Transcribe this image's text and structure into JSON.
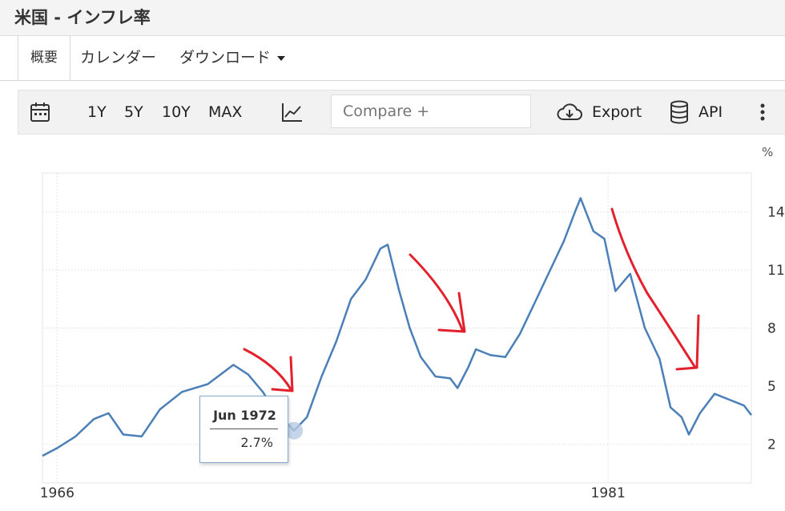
{
  "header": {
    "title": "米国 - インフレ率"
  },
  "tabs": [
    {
      "label": "概要"
    },
    {
      "label": "カレンダー"
    },
    {
      "label": "ダウンロード"
    }
  ],
  "toolbar": {
    "ranges": [
      "1Y",
      "5Y",
      "10Y",
      "MAX"
    ],
    "compare_placeholder": "Compare +",
    "export_label": "Export",
    "api_label": "API"
  },
  "tooltip": {
    "date": "Jun 1972",
    "value": "2.7%"
  },
  "colors": {
    "line": "#4a7fb8",
    "arrow": "#e3212d",
    "grid": "#e6e6e6"
  },
  "chart_data": {
    "type": "line",
    "title": "",
    "xlabel": "",
    "ylabel": "%",
    "x_ticks": [
      "1966",
      "1981"
    ],
    "y_ticks": [
      2,
      5,
      8,
      11,
      14
    ],
    "ylim": [
      0,
      16
    ],
    "grid": true,
    "series": [
      {
        "values": [
          [
            1965.6,
            1.4
          ],
          [
            1966.0,
            1.8
          ],
          [
            1966.5,
            2.4
          ],
          [
            1967.0,
            3.3
          ],
          [
            1967.4,
            3.6
          ],
          [
            1967.8,
            2.5
          ],
          [
            1968.3,
            2.4
          ],
          [
            1968.8,
            3.8
          ],
          [
            1969.4,
            4.7
          ],
          [
            1970.1,
            5.1
          ],
          [
            1970.8,
            6.1
          ],
          [
            1971.2,
            5.6
          ],
          [
            1971.6,
            4.7
          ],
          [
            1972.0,
            3.5
          ],
          [
            1972.3,
            3.0
          ],
          [
            1972.45,
            2.7
          ],
          [
            1972.8,
            3.4
          ],
          [
            1973.2,
            5.5
          ],
          [
            1973.6,
            7.3
          ],
          [
            1974.0,
            9.5
          ],
          [
            1974.4,
            10.5
          ],
          [
            1974.8,
            12.1
          ],
          [
            1975.0,
            12.3
          ],
          [
            1975.3,
            10.0
          ],
          [
            1975.6,
            8.0
          ],
          [
            1975.9,
            6.5
          ],
          [
            1976.3,
            5.5
          ],
          [
            1976.7,
            5.4
          ],
          [
            1976.9,
            4.9
          ],
          [
            1977.2,
            6.0
          ],
          [
            1977.4,
            6.9
          ],
          [
            1977.8,
            6.6
          ],
          [
            1978.2,
            6.5
          ],
          [
            1978.6,
            7.7
          ],
          [
            1979.0,
            9.3
          ],
          [
            1979.4,
            10.9
          ],
          [
            1979.8,
            12.5
          ],
          [
            1980.1,
            14.0
          ],
          [
            1980.25,
            14.7
          ],
          [
            1980.6,
            13.0
          ],
          [
            1980.9,
            12.6
          ],
          [
            1981.2,
            9.9
          ],
          [
            1981.6,
            10.8
          ],
          [
            1982.0,
            8.0
          ],
          [
            1982.4,
            6.4
          ],
          [
            1982.7,
            3.9
          ],
          [
            1983.0,
            3.4
          ],
          [
            1983.2,
            2.5
          ],
          [
            1983.5,
            3.6
          ],
          [
            1983.9,
            4.6
          ],
          [
            1984.3,
            4.3
          ],
          [
            1984.7,
            4.0
          ],
          [
            1984.9,
            3.5
          ]
        ]
      }
    ],
    "annotations": [
      "red-arrow",
      "red-arrow",
      "red-arrow",
      "red-arrow"
    ]
  }
}
